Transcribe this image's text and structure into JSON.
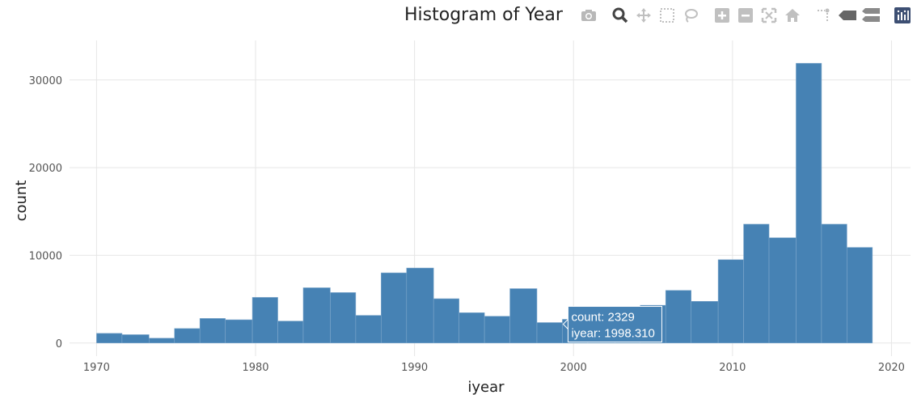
{
  "chart_data": {
    "type": "bar",
    "title": "Histogram of Year",
    "xlabel": "iyear",
    "ylabel": "count",
    "xlim": [
      1968.3,
      2021.2
    ],
    "ylim": [
      -1500,
      34500
    ],
    "xticks": [
      "1970",
      "1980",
      "1990",
      "2000",
      "2010",
      "2020"
    ],
    "yticks": [
      "0",
      "10000",
      "20000",
      "30000"
    ],
    "grid": true,
    "bar_color": "#4682b4",
    "bins": [
      {
        "x0": 1970.0,
        "x1": 1971.6,
        "count": 1100
      },
      {
        "x0": 1971.6,
        "x1": 1973.3,
        "count": 950
      },
      {
        "x0": 1973.3,
        "x1": 1974.9,
        "count": 550
      },
      {
        "x0": 1974.9,
        "x1": 1976.5,
        "count": 1650
      },
      {
        "x0": 1976.5,
        "x1": 1978.1,
        "count": 2800
      },
      {
        "x0": 1978.1,
        "x1": 1979.8,
        "count": 2650
      },
      {
        "x0": 1979.8,
        "x1": 1981.4,
        "count": 5200
      },
      {
        "x0": 1981.4,
        "x1": 1983.0,
        "count": 2500
      },
      {
        "x0": 1983.0,
        "x1": 1984.7,
        "count": 6300
      },
      {
        "x0": 1984.7,
        "x1": 1986.3,
        "count": 5750
      },
      {
        "x0": 1986.3,
        "x1": 1987.9,
        "count": 3150
      },
      {
        "x0": 1987.9,
        "x1": 1989.5,
        "count": 8000
      },
      {
        "x0": 1989.5,
        "x1": 1991.2,
        "count": 8550
      },
      {
        "x0": 1991.2,
        "x1": 1992.8,
        "count": 5050
      },
      {
        "x0": 1992.8,
        "x1": 1994.4,
        "count": 3450
      },
      {
        "x0": 1994.4,
        "x1": 1996.0,
        "count": 3050
      },
      {
        "x0": 1996.0,
        "x1": 1997.7,
        "count": 6200
      },
      {
        "x0": 1997.7,
        "x1": 1999.3,
        "count": 2329
      },
      {
        "x0": 1999.3,
        "x1": 2000.9,
        "count": 2700
      },
      {
        "x0": 2000.9,
        "x1": 2002.6,
        "count": 3300
      },
      {
        "x0": 2002.6,
        "x1": 2004.2,
        "count": 3800
      },
      {
        "x0": 2004.2,
        "x1": 2005.8,
        "count": 4300
      },
      {
        "x0": 2005.8,
        "x1": 2007.4,
        "count": 6000
      },
      {
        "x0": 2007.4,
        "x1": 2009.1,
        "count": 4750
      },
      {
        "x0": 2009.1,
        "x1": 2010.7,
        "count": 9500
      },
      {
        "x0": 2010.7,
        "x1": 2012.3,
        "count": 13550
      },
      {
        "x0": 2012.3,
        "x1": 2014.0,
        "count": 12000
      },
      {
        "x0": 2014.0,
        "x1": 2015.6,
        "count": 31900
      },
      {
        "x0": 2015.6,
        "x1": 2017.2,
        "count": 13550
      },
      {
        "x0": 2017.2,
        "x1": 2018.8,
        "count": 10900
      }
    ],
    "tooltip": {
      "count_label": "count:",
      "count_value": "2329",
      "x_label": "iyear:",
      "x_value": "1998.310",
      "x": 1998.3
    }
  },
  "modebar": {
    "buttons": [
      "camera-icon",
      "zoom-icon",
      "pan-icon",
      "box-select-icon",
      "lasso-select-icon",
      "zoom-in-icon",
      "zoom-out-icon",
      "autoscale-icon",
      "reset-axes-icon",
      "spike-lines-icon",
      "hover-closest-icon",
      "hover-compare-icon",
      "plotly-logo-icon"
    ]
  }
}
